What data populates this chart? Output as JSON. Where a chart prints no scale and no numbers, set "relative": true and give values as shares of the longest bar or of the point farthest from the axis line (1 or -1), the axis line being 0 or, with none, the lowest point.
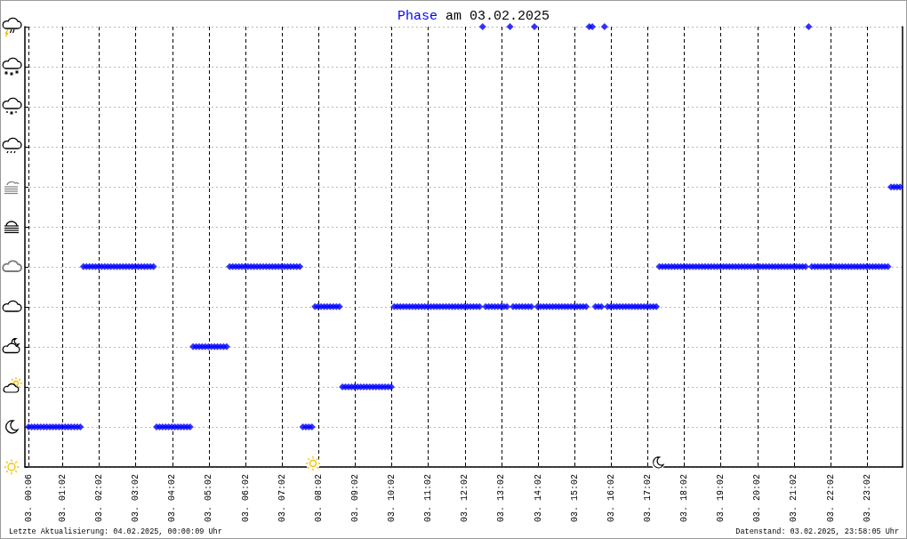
{
  "chart_data": {
    "type": "scatter",
    "title": "Phase am 03.02.2025",
    "annotations": [
      "Letzte Aktualisierung: 04.02.2025, 00:00:09 Uhr",
      "Datenstand: 03.02.2025, 23:58:05 Uhr"
    ],
    "relative": true,
    "marker": "diamond",
    "color": "#0000ff",
    "grid": true,
    "xlim": [
      "2025-02-03T00:00",
      "2025-02-04T00:00"
    ],
    "xticks": [
      {
        "value": "2025-02-03T00:06",
        "label": "03. 00:06"
      },
      {
        "value": "2025-02-03T01:02",
        "label": "03. 01:02"
      },
      {
        "value": "2025-02-03T02:02",
        "label": "03. 02:02"
      },
      {
        "value": "2025-02-03T03:02",
        "label": "03. 03:02"
      },
      {
        "value": "2025-02-03T04:02",
        "label": "03. 04:02"
      },
      {
        "value": "2025-02-03T05:02",
        "label": "03. 05:02"
      },
      {
        "value": "2025-02-03T06:02",
        "label": "03. 06:02"
      },
      {
        "value": "2025-02-03T07:02",
        "label": "03. 07:02"
      },
      {
        "value": "2025-02-03T08:02",
        "label": "03. 08:02"
      },
      {
        "value": "2025-02-03T09:02",
        "label": "03. 09:02"
      },
      {
        "value": "2025-02-03T10:02",
        "label": "03. 10:02"
      },
      {
        "value": "2025-02-03T11:02",
        "label": "03. 11:02"
      },
      {
        "value": "2025-02-03T12:02",
        "label": "03. 12:02"
      },
      {
        "value": "2025-02-03T13:02",
        "label": "03. 13:02"
      },
      {
        "value": "2025-02-03T14:02",
        "label": "03. 14:02"
      },
      {
        "value": "2025-02-03T15:02",
        "label": "03. 15:02"
      },
      {
        "value": "2025-02-03T16:02",
        "label": "03. 16:02"
      },
      {
        "value": "2025-02-03T17:02",
        "label": "03. 17:02"
      },
      {
        "value": "2025-02-03T18:02",
        "label": "03. 18:02"
      },
      {
        "value": "2025-02-03T19:02",
        "label": "03. 19:02"
      },
      {
        "value": "2025-02-03T20:02",
        "label": "03. 20:02"
      },
      {
        "value": "2025-02-03T21:02",
        "label": "03. 21:02"
      },
      {
        "value": "2025-02-03T22:02",
        "label": "03. 22:02"
      },
      {
        "value": "2025-02-03T23:02",
        "label": "03. 23:02"
      }
    ],
    "x": [
      "2025-02-03T00:06",
      "2025-02-03T00:11",
      "2025-02-03T00:16",
      "2025-02-03T00:21",
      "2025-02-03T00:26",
      "2025-02-03T00:31",
      "2025-02-03T00:36",
      "2025-02-03T00:41",
      "2025-02-03T00:46",
      "2025-02-03T00:51",
      "2025-02-03T00:56",
      "2025-02-03T01:01",
      "2025-02-03T01:06",
      "2025-02-03T01:11",
      "2025-02-03T01:16",
      "2025-02-03T01:21",
      "2025-02-03T01:26",
      "2025-02-03T01:31",
      "2025-02-03T01:36",
      "2025-02-03T01:41",
      "2025-02-03T01:46",
      "2025-02-03T01:51",
      "2025-02-03T01:56",
      "2025-02-03T02:01",
      "2025-02-03T02:06",
      "2025-02-03T02:11",
      "2025-02-03T02:16",
      "2025-02-03T02:21",
      "2025-02-03T02:26",
      "2025-02-03T02:31",
      "2025-02-03T02:36",
      "2025-02-03T02:41",
      "2025-02-03T02:46",
      "2025-02-03T02:51",
      "2025-02-03T02:56",
      "2025-02-03T03:01",
      "2025-02-03T03:06",
      "2025-02-03T03:11",
      "2025-02-03T03:16",
      "2025-02-03T03:21",
      "2025-02-03T03:26",
      "2025-02-03T03:31",
      "2025-02-03T03:36",
      "2025-02-03T03:41",
      "2025-02-03T03:46",
      "2025-02-03T03:51",
      "2025-02-03T03:56",
      "2025-02-03T04:01",
      "2025-02-03T04:06",
      "2025-02-03T04:11",
      "2025-02-03T04:16",
      "2025-02-03T04:21",
      "2025-02-03T04:26",
      "2025-02-03T04:31",
      "2025-02-03T04:36",
      "2025-02-03T04:41",
      "2025-02-03T04:46",
      "2025-02-03T04:51",
      "2025-02-03T04:56",
      "2025-02-03T05:01",
      "2025-02-03T05:06",
      "2025-02-03T05:11",
      "2025-02-03T05:16",
      "2025-02-03T05:21",
      "2025-02-03T05:26",
      "2025-02-03T05:31",
      "2025-02-03T05:36",
      "2025-02-03T05:41",
      "2025-02-03T05:46",
      "2025-02-03T05:51",
      "2025-02-03T05:56",
      "2025-02-03T06:01",
      "2025-02-03T06:06",
      "2025-02-03T06:11",
      "2025-02-03T06:16",
      "2025-02-03T06:21",
      "2025-02-03T06:26",
      "2025-02-03T06:31",
      "2025-02-03T06:36",
      "2025-02-03T06:41",
      "2025-02-03T06:46",
      "2025-02-03T06:51",
      "2025-02-03T06:56",
      "2025-02-03T07:01",
      "2025-02-03T07:06",
      "2025-02-03T07:11",
      "2025-02-03T07:16",
      "2025-02-03T07:21",
      "2025-02-03T07:26",
      "2025-02-03T07:31",
      "2025-02-03T07:36",
      "2025-02-03T07:41",
      "2025-02-03T07:46",
      "2025-02-03T07:51",
      "2025-02-03T07:56",
      "2025-02-03T08:01",
      "2025-02-03T08:06",
      "2025-02-03T08:11",
      "2025-02-03T08:16",
      "2025-02-03T08:21",
      "2025-02-03T08:26",
      "2025-02-03T08:31",
      "2025-02-03T08:36",
      "2025-02-03T08:41",
      "2025-02-03T08:46",
      "2025-02-03T08:51",
      "2025-02-03T08:56",
      "2025-02-03T09:01",
      "2025-02-03T09:06",
      "2025-02-03T09:11",
      "2025-02-03T09:16",
      "2025-02-03T09:21",
      "2025-02-03T09:26",
      "2025-02-03T09:31",
      "2025-02-03T09:36",
      "2025-02-03T09:41",
      "2025-02-03T09:46",
      "2025-02-03T09:51",
      "2025-02-03T09:56",
      "2025-02-03T10:01",
      "2025-02-03T10:06",
      "2025-02-03T10:11",
      "2025-02-03T10:16",
      "2025-02-03T10:21",
      "2025-02-03T10:26",
      "2025-02-03T10:31",
      "2025-02-03T10:36",
      "2025-02-03T10:41",
      "2025-02-03T10:46",
      "2025-02-03T10:51",
      "2025-02-03T10:56",
      "2025-02-03T11:01",
      "2025-02-03T11:06",
      "2025-02-03T11:11",
      "2025-02-03T11:16",
      "2025-02-03T11:21",
      "2025-02-03T11:26",
      "2025-02-03T11:31",
      "2025-02-03T11:36",
      "2025-02-03T11:41",
      "2025-02-03T11:46",
      "2025-02-03T11:51",
      "2025-02-03T11:56",
      "2025-02-03T12:01",
      "2025-02-03T12:06",
      "2025-02-03T12:11",
      "2025-02-03T12:16",
      "2025-02-03T12:21",
      "2025-02-03T12:26",
      "2025-02-03T12:31",
      "2025-02-03T12:36",
      "2025-02-03T12:41",
      "2025-02-03T12:46",
      "2025-02-03T12:51",
      "2025-02-03T12:56",
      "2025-02-03T13:01",
      "2025-02-03T13:06",
      "2025-02-03T13:11",
      "2025-02-03T13:16",
      "2025-02-03T13:21",
      "2025-02-03T13:26",
      "2025-02-03T13:31",
      "2025-02-03T13:36",
      "2025-02-03T13:41",
      "2025-02-03T13:46",
      "2025-02-03T13:51",
      "2025-02-03T13:56",
      "2025-02-03T14:01",
      "2025-02-03T14:06",
      "2025-02-03T14:11",
      "2025-02-03T14:16",
      "2025-02-03T14:21",
      "2025-02-03T14:26",
      "2025-02-03T14:31",
      "2025-02-03T14:36",
      "2025-02-03T14:41",
      "2025-02-03T14:46",
      "2025-02-03T14:51",
      "2025-02-03T14:56",
      "2025-02-03T15:01",
      "2025-02-03T15:06",
      "2025-02-03T15:11",
      "2025-02-03T15:16",
      "2025-02-03T15:21",
      "2025-02-03T15:26",
      "2025-02-03T15:31",
      "2025-02-03T15:36",
      "2025-02-03T15:41",
      "2025-02-03T15:46",
      "2025-02-03T15:51",
      "2025-02-03T15:56",
      "2025-02-03T16:01",
      "2025-02-03T16:06",
      "2025-02-03T16:11",
      "2025-02-03T16:16",
      "2025-02-03T16:21",
      "2025-02-03T16:26",
      "2025-02-03T16:31",
      "2025-02-03T16:36",
      "2025-02-03T16:41",
      "2025-02-03T16:46",
      "2025-02-03T16:51",
      "2025-02-03T16:56",
      "2025-02-03T17:01",
      "2025-02-03T17:06",
      "2025-02-03T17:11",
      "2025-02-03T17:16",
      "2025-02-03T17:21",
      "2025-02-03T17:26",
      "2025-02-03T17:31",
      "2025-02-03T17:36",
      "2025-02-03T17:41",
      "2025-02-03T17:46",
      "2025-02-03T17:51",
      "2025-02-03T17:56",
      "2025-02-03T18:01",
      "2025-02-03T18:06",
      "2025-02-03T18:11",
      "2025-02-03T18:16",
      "2025-02-03T18:21",
      "2025-02-03T18:26",
      "2025-02-03T18:31",
      "2025-02-03T18:36",
      "2025-02-03T18:41",
      "2025-02-03T18:46",
      "2025-02-03T18:51",
      "2025-02-03T18:56",
      "2025-02-03T19:01",
      "2025-02-03T19:06",
      "2025-02-03T19:11",
      "2025-02-03T19:16",
      "2025-02-03T19:21",
      "2025-02-03T19:26",
      "2025-02-03T19:31",
      "2025-02-03T19:36",
      "2025-02-03T19:41",
      "2025-02-03T19:46",
      "2025-02-03T19:51",
      "2025-02-03T19:56",
      "2025-02-03T20:01",
      "2025-02-03T20:06",
      "2025-02-03T20:11",
      "2025-02-03T20:16",
      "2025-02-03T20:21",
      "2025-02-03T20:26",
      "2025-02-03T20:31",
      "2025-02-03T20:36",
      "2025-02-03T20:41",
      "2025-02-03T20:46",
      "2025-02-03T20:51",
      "2025-02-03T20:56",
      "2025-02-03T21:01",
      "2025-02-03T21:06",
      "2025-02-03T21:11",
      "2025-02-03T21:16",
      "2025-02-03T21:21",
      "2025-02-03T21:26",
      "2025-02-03T21:31",
      "2025-02-03T21:36",
      "2025-02-03T21:41",
      "2025-02-03T21:46",
      "2025-02-03T21:51",
      "2025-02-03T21:56",
      "2025-02-03T22:01",
      "2025-02-03T22:06",
      "2025-02-03T22:11",
      "2025-02-03T22:16",
      "2025-02-03T22:21",
      "2025-02-03T22:26",
      "2025-02-03T22:31",
      "2025-02-03T22:36",
      "2025-02-03T22:41",
      "2025-02-03T22:46",
      "2025-02-03T22:51",
      "2025-02-03T22:56",
      "2025-02-03T23:01",
      "2025-02-03T23:06",
      "2025-02-03T23:11",
      "2025-02-03T23:16",
      "2025-02-03T23:21",
      "2025-02-03T23:26",
      "2025-02-03T23:31",
      "2025-02-03T23:36",
      "2025-02-03T23:41",
      "2025-02-03T23:46",
      "2025-02-03T23:51",
      "2025-02-03T23:56"
    ],
    "values": [
      0.091,
      0.091,
      0.091,
      0.091,
      0.091,
      0.091,
      0.091,
      0.091,
      0.091,
      0.091,
      0.091,
      0.091,
      0.091,
      0.091,
      0.091,
      0.091,
      0.091,
      0.091,
      0.455,
      0.455,
      0.455,
      0.455,
      0.455,
      0.455,
      0.455,
      0.455,
      0.455,
      0.455,
      0.455,
      0.455,
      0.455,
      0.455,
      0.455,
      0.455,
      0.455,
      0.455,
      0.455,
      0.455,
      0.455,
      0.455,
      0.455,
      0.455,
      0.091,
      0.091,
      0.091,
      0.091,
      0.091,
      0.091,
      0.091,
      0.091,
      0.091,
      0.091,
      0.091,
      0.091,
      0.273,
      0.273,
      0.273,
      0.273,
      0.273,
      0.273,
      0.273,
      0.273,
      0.273,
      0.273,
      0.273,
      0.273,
      0.455,
      0.455,
      0.455,
      0.455,
      0.455,
      0.455,
      0.455,
      0.455,
      0.455,
      0.455,
      0.455,
      0.455,
      0.455,
      0.455,
      0.455,
      0.455,
      0.455,
      0.455,
      0.455,
      0.455,
      0.455,
      0.455,
      0.455,
      0.455,
      0.091,
      0.091,
      0.091,
      0.091,
      0.364,
      0.364,
      0.364,
      0.364,
      0.364,
      0.364,
      0.364,
      0.364,
      0.364,
      0.182,
      0.182,
      0.182,
      0.182,
      0.182,
      0.182,
      0.182,
      0.182,
      0.182,
      0.182,
      0.182,
      0.182,
      0.182,
      0.182,
      0.182,
      0.182,
      0.182,
      0.364,
      0.364,
      0.364,
      0.364,
      0.364,
      0.364,
      0.364,
      0.364,
      0.364,
      0.364,
      0.364,
      0.364,
      0.364,
      0.364,
      0.364,
      0.364,
      0.364,
      0.364,
      0.364,
      0.364,
      0.364,
      0.364,
      0.364,
      0.364,
      0.364,
      0.364,
      0.364,
      0.364,
      0.364,
      1,
      0.364,
      0.364,
      0.364,
      0.364,
      0.364,
      0.364,
      0.364,
      0.364,
      1,
      0.364,
      0.364,
      0.364,
      0.364,
      0.364,
      0.364,
      0.364,
      1,
      0.364,
      0.364,
      0.364,
      0.364,
      0.364,
      0.364,
      0.364,
      0.364,
      0.364,
      0.364,
      0.364,
      0.364,
      0.364,
      0.364,
      0.364,
      0.364,
      0.364,
      1,
      1,
      0.364,
      0.364,
      0.364,
      1,
      0.364,
      0.364,
      0.364,
      0.364,
      0.364,
      0.364,
      0.364,
      0.364,
      0.364,
      0.364,
      0.364,
      0.364,
      0.364,
      0.364,
      0.364,
      0.364,
      0.364,
      0.455,
      0.455,
      0.455,
      0.455,
      0.455,
      0.455,
      0.455,
      0.455,
      0.455,
      0.455,
      0.455,
      0.455,
      0.455,
      0.455,
      0.455,
      0.455,
      0.455,
      0.455,
      0.455,
      0.455,
      0.455,
      0.455,
      0.455,
      0.455,
      0.455,
      0.455,
      0.455,
      0.455,
      0.455,
      0.455,
      0.455,
      0.455,
      0.455,
      0.455,
      0.455,
      0.455,
      0.455,
      0.455,
      0.455,
      0.455,
      0.455,
      0.455,
      0.455,
      0.455,
      0.455,
      0.455,
      0.455,
      0.455,
      0.455,
      1,
      0.455,
      0.455,
      0.455,
      0.455,
      0.455,
      0.455,
      0.455,
      0.455,
      0.455,
      0.455,
      0.455,
      0.455,
      0.455,
      0.455,
      0.455,
      0.455,
      0.455,
      0.455,
      0.455,
      0.455,
      0.455,
      0.455,
      0.455,
      0.455,
      0.455,
      0.455,
      0.636,
      0.636,
      0.636,
      0.636
    ]
  }
}
